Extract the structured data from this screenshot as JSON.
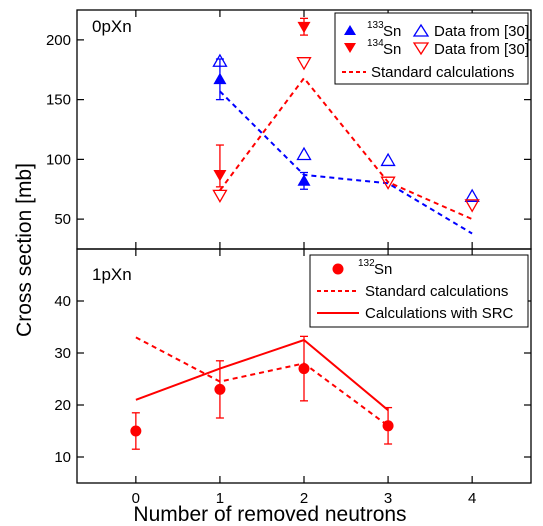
{
  "chart_data": [
    {
      "type": "scatter",
      "panel_label": "0pXn",
      "ylim": [
        25,
        225
      ],
      "xlim": [
        -0.7,
        4.7
      ],
      "y_ticks": [
        50,
        100,
        150,
        200
      ],
      "x_ticks": [
        0,
        1,
        2,
        3,
        4
      ],
      "grid": false,
      "legend_position": "top-right",
      "legend": {
        "sn133_prefix": "133",
        "sn133_base": "Sn",
        "sn134_prefix": "134",
        "sn134_base": "Sn",
        "data_ref": "Data from [30]",
        "standard": "Standard calculations"
      },
      "series": [
        {
          "name": "133Sn",
          "marker": "triangle-up-filled",
          "color": "#0000ff",
          "points": [
            {
              "x": 1,
              "y": 167,
              "err": 17
            },
            {
              "x": 2,
              "y": 82,
              "err": 7
            }
          ]
        },
        {
          "name": "134Sn",
          "marker": "triangle-down-filled",
          "color": "#ff0000",
          "points": [
            {
              "x": 1,
              "y": 87,
              "err_up": 25,
              "err_down": 10
            },
            {
              "x": 2,
              "y": 211,
              "err": 7
            }
          ]
        },
        {
          "name": "133Sn Data from [30]",
          "marker": "triangle-up-open",
          "color": "#0000ff",
          "points": [
            {
              "x": 1,
              "y": 182
            },
            {
              "x": 2,
              "y": 104
            },
            {
              "x": 3,
              "y": 99
            },
            {
              "x": 4,
              "y": 69
            }
          ]
        },
        {
          "name": "134Sn Data from [30]",
          "marker": "triangle-down-open",
          "color": "#ff0000",
          "points": [
            {
              "x": 1,
              "y": 70
            },
            {
              "x": 2,
              "y": 181
            },
            {
              "x": 3,
              "y": 81
            },
            {
              "x": 4,
              "y": 62
            }
          ]
        },
        {
          "name": "Standard calculations 133Sn",
          "line": "dashed",
          "color": "#0000ff",
          "points": [
            {
              "x": 1,
              "y": 157
            },
            {
              "x": 2,
              "y": 87
            },
            {
              "x": 3,
              "y": 80
            },
            {
              "x": 4,
              "y": 38
            }
          ]
        },
        {
          "name": "Standard calculations 134Sn",
          "line": "dashed",
          "color": "#ff0000",
          "points": [
            {
              "x": 1,
              "y": 74
            },
            {
              "x": 2,
              "y": 168
            },
            {
              "x": 3,
              "y": 81
            },
            {
              "x": 4,
              "y": 50
            }
          ]
        }
      ]
    },
    {
      "type": "scatter",
      "panel_label": "1pXn",
      "ylim": [
        5,
        50
      ],
      "xlim": [
        -0.7,
        4.7
      ],
      "y_ticks": [
        10,
        20,
        30,
        40
      ],
      "x_ticks": [
        0,
        1,
        2,
        3,
        4
      ],
      "grid": false,
      "legend_position": "top-right",
      "legend": {
        "sn132_prefix": "132",
        "sn132_base": "Sn",
        "standard": "Standard calculations",
        "src": "Calculations with SRC"
      },
      "series": [
        {
          "name": "132Sn",
          "marker": "circle-filled",
          "color": "#ff0000",
          "points": [
            {
              "x": 0,
              "y": 15,
              "err": 3.5
            },
            {
              "x": 1,
              "y": 23,
              "err": 5.5
            },
            {
              "x": 2,
              "y": 27,
              "err": 6.2
            },
            {
              "x": 3,
              "y": 16,
              "err": 3.5
            }
          ]
        },
        {
          "name": "Standard calculations",
          "line": "dashed",
          "color": "#ff0000",
          "points": [
            {
              "x": 0,
              "y": 33
            },
            {
              "x": 1,
              "y": 24.5
            },
            {
              "x": 2,
              "y": 28
            },
            {
              "x": 3,
              "y": 16
            }
          ]
        },
        {
          "name": "Calculations with SRC",
          "line": "solid",
          "color": "#ff0000",
          "points": [
            {
              "x": 0,
              "y": 21
            },
            {
              "x": 1,
              "y": 27
            },
            {
              "x": 2,
              "y": 32.5
            },
            {
              "x": 3,
              "y": 19
            }
          ]
        }
      ]
    }
  ],
  "axes": {
    "xlabel": "Number of removed neutrons",
    "ylabel": "Cross section [mb]"
  }
}
